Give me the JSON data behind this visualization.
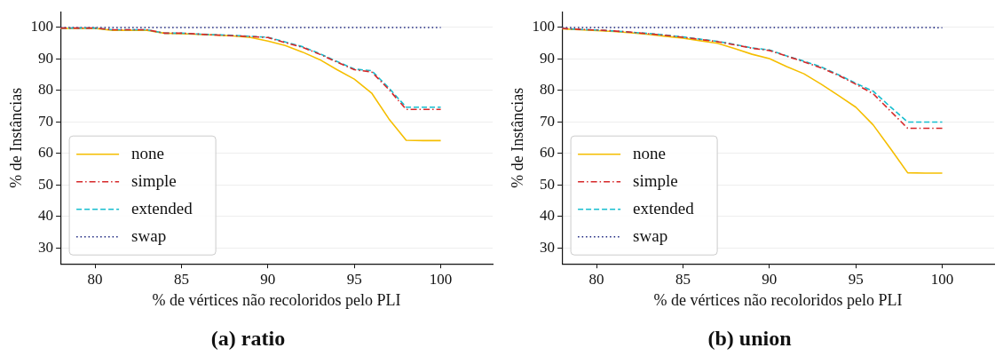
{
  "chart_data": [
    {
      "type": "line",
      "title": "(a) ratio",
      "xlabel": "% de vértices não recoloridos pelo PLI",
      "ylabel": "% de Instâncias",
      "x": [
        78,
        79,
        80,
        81,
        82,
        83,
        84,
        85,
        86,
        87,
        88,
        89,
        90,
        91,
        92,
        93,
        94,
        95,
        96,
        97,
        98,
        99,
        100
      ],
      "xlim": [
        78,
        103
      ],
      "xticks": [
        80,
        85,
        90,
        95,
        100
      ],
      "ylim": [
        25,
        105
      ],
      "yticks": [
        30,
        40,
        50,
        60,
        70,
        80,
        90,
        100
      ],
      "grid": "y",
      "legend": "bottom left",
      "marker": "none",
      "series": [
        {
          "name": "none",
          "color": "#f5be00",
          "line_style": "solid",
          "values": [
            99.7,
            99.7,
            99.7,
            99.1,
            99.1,
            99.1,
            98.2,
            98,
            97.8,
            97.6,
            97.3,
            96.8,
            95.7,
            94.3,
            92.2,
            89.8,
            86.6,
            83.6,
            79.2,
            71,
            64.2,
            64.1,
            64.1
          ]
        },
        {
          "name": "simple",
          "color": "#d62728",
          "line_style": "dashdot",
          "values": [
            99.8,
            99.8,
            99.8,
            99.3,
            99.3,
            99.3,
            98.2,
            98.2,
            97.9,
            97.6,
            97.4,
            97.1,
            96.8,
            95.2,
            93.7,
            91.5,
            89,
            86.6,
            85.9,
            80.3,
            74,
            74,
            74
          ]
        },
        {
          "name": "extended",
          "color": "#17becf",
          "line_style": "dashed",
          "values": [
            99.8,
            99.8,
            99.8,
            99.3,
            99.3,
            99.3,
            98.2,
            98.2,
            97.9,
            97.7,
            97.5,
            97.2,
            96.9,
            95.4,
            93.9,
            91.7,
            89.2,
            86.8,
            86.3,
            80.8,
            74.7,
            74.7,
            74.7
          ]
        },
        {
          "name": "swap",
          "color": "#1a237e",
          "line_style": "dotted",
          "values": [
            100,
            100,
            100,
            100,
            100,
            100,
            100,
            100,
            100,
            100,
            100,
            100,
            100,
            100,
            100,
            100,
            100,
            100,
            100,
            100,
            100,
            100,
            100
          ]
        }
      ]
    },
    {
      "type": "line",
      "title": "(b) union",
      "xlabel": "% de vértices não recoloridos pelo PLI",
      "ylabel": "% de Instâncias",
      "x": [
        78,
        79,
        80,
        81,
        82,
        83,
        84,
        85,
        86,
        87,
        88,
        89,
        90,
        91,
        92,
        93,
        94,
        95,
        96,
        97,
        98,
        99,
        100
      ],
      "xlim": [
        78,
        103
      ],
      "xticks": [
        80,
        85,
        90,
        95,
        100
      ],
      "ylim": [
        25,
        105
      ],
      "yticks": [
        30,
        40,
        50,
        60,
        70,
        80,
        90,
        100
      ],
      "grid": "y",
      "legend": "bottom left",
      "marker": "none",
      "series": [
        {
          "name": "none",
          "color": "#f5be00",
          "line_style": "solid",
          "values": [
            99.6,
            99.3,
            99,
            98.7,
            98.3,
            97.8,
            97.2,
            96.6,
            95.8,
            95,
            93.3,
            91.5,
            90.1,
            87.6,
            85.3,
            82,
            78.4,
            74.7,
            69.1,
            61.6,
            53.9,
            53.8,
            53.8
          ]
        },
        {
          "name": "simple",
          "color": "#d62728",
          "line_style": "dashdot",
          "values": [
            99.7,
            99.4,
            99.2,
            98.9,
            98.5,
            98,
            97.5,
            96.9,
            96.2,
            95.5,
            94.5,
            93.4,
            92.7,
            90.9,
            89.1,
            87.2,
            84.8,
            82,
            79,
            73.5,
            68,
            68,
            68
          ]
        },
        {
          "name": "extended",
          "color": "#17becf",
          "line_style": "dashed",
          "values": [
            99.7,
            99.4,
            99.2,
            98.9,
            98.5,
            98.1,
            97.6,
            97,
            96.3,
            95.6,
            94.6,
            93.5,
            92.9,
            91,
            89.3,
            87.5,
            85,
            82.3,
            79.8,
            74.8,
            70,
            70,
            70
          ]
        },
        {
          "name": "swap",
          "color": "#1a237e",
          "line_style": "dotted",
          "values": [
            100,
            100,
            100,
            100,
            100,
            100,
            100,
            100,
            100,
            100,
            100,
            100,
            100,
            100,
            100,
            100,
            100,
            100,
            100,
            100,
            100,
            100,
            99.9
          ]
        }
      ]
    }
  ]
}
